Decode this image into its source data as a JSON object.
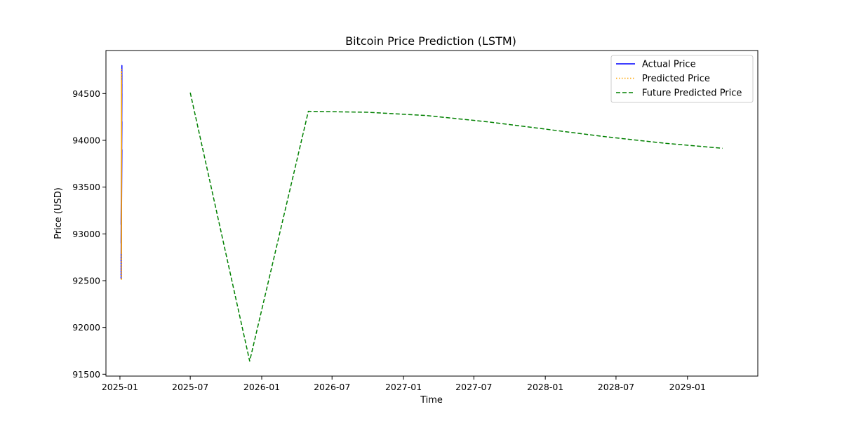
{
  "chart_data": {
    "type": "line",
    "title": "Bitcoin Price Prediction (LSTM)",
    "xlabel": "Time",
    "ylabel": "Price (USD)",
    "xlim": [
      "2024-11-26",
      "2029-07-01"
    ],
    "ylim": [
      91480,
      94960
    ],
    "x_ticks": [
      "2025-01",
      "2025-07",
      "2026-01",
      "2026-07",
      "2027-01",
      "2027-07",
      "2028-01",
      "2028-07",
      "2029-01"
    ],
    "y_ticks": [
      91500,
      92000,
      92500,
      93000,
      93500,
      94000,
      94500
    ],
    "grid": false,
    "legend_position": "top-right",
    "series": [
      {
        "name": "Actual Price",
        "color": "#0000ff",
        "style": "solid",
        "x": [
          "2025-01-05",
          "2025-01-05",
          "2025-01-05",
          "2025-01-05",
          "2025-01-05",
          "2025-01-05",
          "2025-01-05",
          "2025-01-05",
          "2025-01-05",
          "2025-01-05",
          "2025-01-05",
          "2025-01-05"
        ],
        "values": [
          92550,
          94800,
          92600,
          94700,
          92900,
          94200,
          93100,
          94500,
          92700,
          93900,
          92520,
          94600
        ]
      },
      {
        "name": "Predicted Price",
        "color": "#ffa500",
        "style": "dotted",
        "x": [
          "2025-01-05",
          "2025-01-05",
          "2025-01-05",
          "2025-01-05",
          "2025-01-05",
          "2025-01-05",
          "2025-01-05",
          "2025-01-05",
          "2025-01-05",
          "2025-01-05"
        ],
        "values": [
          92510,
          94760,
          92800,
          94650,
          93000,
          94400,
          92600,
          94100,
          92520,
          94700
        ]
      },
      {
        "name": "Future Predicted Price",
        "color": "#008000",
        "style": "dashed",
        "x": [
          "2025-07-01",
          "2025-12-01",
          "2026-05-01",
          "2026-10-01",
          "2027-03-01",
          "2027-08-01",
          "2028-01-01",
          "2028-06-01",
          "2028-11-01",
          "2029-04-01"
        ],
        "values": [
          94510,
          91640,
          94310,
          94300,
          94265,
          94200,
          94120,
          94040,
          93970,
          93915
        ]
      }
    ]
  }
}
